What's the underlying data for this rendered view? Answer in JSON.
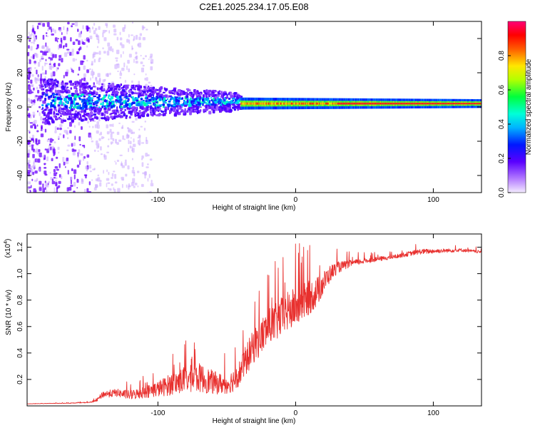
{
  "title": "C2E1.2025.234.17.05.E08",
  "colors": {
    "snr_line": "#e8302e",
    "axis": "#000000",
    "dot_primary": "#6a00ff",
    "dot_light": "#c9a6ff",
    "band_core": "#ff1b1b"
  },
  "chart_data": [
    {
      "type": "heatmap",
      "title": "",
      "xlabel": "Height of straight line (km)",
      "ylabel": "Frequency (Hz)",
      "xlim": [
        -195,
        135
      ],
      "ylim": [
        -50,
        50
      ],
      "x_ticks": [
        -100,
        0,
        100
      ],
      "x_tick_labels": [
        "-100",
        "0",
        "100"
      ],
      "y_ticks": [
        -40,
        -20,
        0,
        20,
        40
      ],
      "y_tick_labels": [
        "-40",
        "-20",
        "0",
        "20",
        "40"
      ],
      "colorbar": {
        "label": "Normalized spectral amplitude",
        "range": [
          0.0,
          1.0
        ],
        "ticks": [
          0.0,
          0.2,
          0.4,
          0.6,
          0.8
        ],
        "tick_labels": [
          "0.0",
          "0.2",
          "0.4",
          "0.6",
          "0.8"
        ],
        "colormap": "rainbow (white-violet-blue-cyan-green-yellow-red-magenta)"
      },
      "features": [
        {
          "name": "scattered noise",
          "x_range": [
            -195,
            -120
          ],
          "freq_range": [
            -50,
            50
          ],
          "amplitude": 0.05
        },
        {
          "name": "broadened band",
          "x_range": [
            -180,
            -40
          ],
          "center_hz": 4,
          "half_width_hz": 10,
          "amplitude": 0.3
        },
        {
          "name": "narrow tone",
          "x_range": [
            -40,
            135
          ],
          "center_hz": 2,
          "half_width_hz": 2,
          "amplitude": 0.9
        }
      ]
    },
    {
      "type": "line",
      "title": "",
      "xlabel": "Height of straight line (km)",
      "ylabel": "SNR (10 * v/v)",
      "y_multiplier_label": "(x10",
      "y_multiplier_exponent": "4",
      "y_multiplier_close": ")",
      "xlim": [
        -195,
        135
      ],
      "ylim": [
        0,
        13000
      ],
      "x_ticks": [
        -100,
        0,
        100
      ],
      "x_tick_labels": [
        "-100",
        "0",
        "100"
      ],
      "y_ticks": [
        2000,
        4000,
        6000,
        8000,
        10000,
        12000
      ],
      "y_tick_labels": [
        "0.2",
        "0.4",
        "0.6",
        "0.8",
        "1.0",
        "1.2"
      ],
      "series": [
        {
          "name": "SNR",
          "x": [
            -195,
            -180,
            -165,
            -150,
            -145,
            -140,
            -130,
            -120,
            -110,
            -100,
            -90,
            -80,
            -70,
            -60,
            -50,
            -45,
            -40,
            -35,
            -30,
            -25,
            -20,
            -15,
            -10,
            -5,
            0,
            5,
            10,
            15,
            20,
            25,
            30,
            40,
            50,
            60,
            70,
            80,
            90,
            100,
            110,
            120,
            135
          ],
          "values": [
            150,
            180,
            200,
            250,
            350,
            800,
            900,
            700,
            900,
            1100,
            1400,
            1700,
            1800,
            1500,
            1400,
            1700,
            2300,
            3300,
            4200,
            4800,
            5500,
            5800,
            6300,
            6700,
            7000,
            7400,
            7800,
            8200,
            9000,
            9800,
            10300,
            10700,
            10900,
            11050,
            11200,
            11400,
            11600,
            11650,
            11700,
            11750,
            11600
          ],
          "noise_amplitude": [
            20,
            30,
            40,
            60,
            150,
            500,
            600,
            700,
            900,
            1200,
            1700,
            2000,
            2200,
            1800,
            1400,
            1800,
            2000,
            2400,
            2600,
            2800,
            2800,
            2900,
            3000,
            3100,
            3000,
            2800,
            2600,
            2300,
            1800,
            1300,
            900,
            500,
            400,
            350,
            300,
            350,
            400,
            350,
            300,
            250,
            200
          ]
        }
      ]
    }
  ]
}
